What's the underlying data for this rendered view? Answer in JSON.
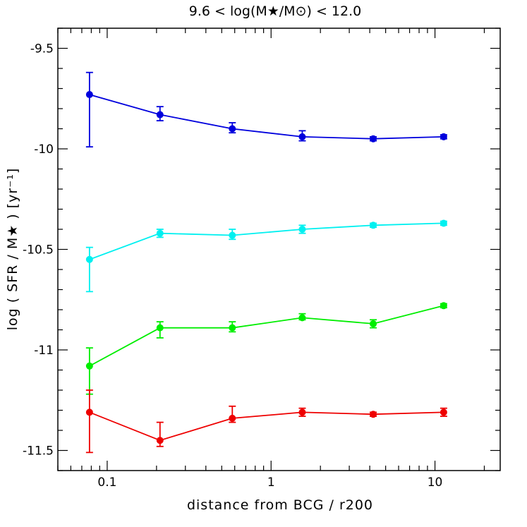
{
  "chart_data": {
    "type": "line",
    "title": "9.6 < log(M★/M⊙) < 12.0",
    "xlabel": "distance from BCG / r200",
    "ylabel": "log ( SFR / M★ ) [yr⁻¹]",
    "x_scale": "log",
    "xlim": [
      0.05,
      25
    ],
    "ylim": [
      -11.6,
      -9.4
    ],
    "x_ticks": [
      {
        "value": 0.1,
        "label": "0.1"
      },
      {
        "value": 1,
        "label": "1"
      },
      {
        "value": 10,
        "label": "10"
      }
    ],
    "y_ticks": [
      {
        "value": -9.5,
        "label": "-9.5"
      },
      {
        "value": -10,
        "label": "-10"
      },
      {
        "value": -10.5,
        "label": "-10.5"
      },
      {
        "value": -11,
        "label": "-11"
      },
      {
        "value": -11.5,
        "label": "-11.5"
      }
    ],
    "grid": false,
    "series": [
      {
        "color": "#0000dd",
        "x": [
          0.078,
          0.21,
          0.58,
          1.55,
          4.2,
          11.3
        ],
        "y": [
          -9.73,
          -9.83,
          -9.9,
          -9.94,
          -9.95,
          -9.94
        ],
        "err_low": [
          0.26,
          0.03,
          0.02,
          0.02,
          0.01,
          0.01
        ],
        "err_high": [
          0.11,
          0.04,
          0.03,
          0.03,
          0.01,
          0.01
        ]
      },
      {
        "color": "#00f0f0",
        "x": [
          0.078,
          0.21,
          0.58,
          1.55,
          4.2,
          11.3
        ],
        "y": [
          -10.55,
          -10.42,
          -10.43,
          -10.4,
          -10.38,
          -10.37
        ],
        "err_low": [
          0.16,
          0.02,
          0.02,
          0.02,
          0.01,
          0.01
        ],
        "err_high": [
          0.06,
          0.02,
          0.03,
          0.02,
          0.01,
          0.01
        ]
      },
      {
        "color": "#00ee00",
        "x": [
          0.078,
          0.21,
          0.58,
          1.55,
          4.2,
          11.3
        ],
        "y": [
          -11.08,
          -10.89,
          -10.89,
          -10.84,
          -10.87,
          -10.78
        ],
        "err_low": [
          0.14,
          0.05,
          0.02,
          0.01,
          0.02,
          0.01
        ],
        "err_high": [
          0.09,
          0.03,
          0.03,
          0.02,
          0.02,
          0.01
        ]
      },
      {
        "color": "#ee0000",
        "x": [
          0.078,
          0.21,
          0.58,
          1.55,
          4.2,
          11.3
        ],
        "y": [
          -11.31,
          -11.45,
          -11.34,
          -11.31,
          -11.32,
          -11.31
        ],
        "err_low": [
          0.2,
          0.03,
          0.02,
          0.02,
          0.01,
          0.02
        ],
        "err_high": [
          0.11,
          0.09,
          0.06,
          0.02,
          0.01,
          0.02
        ]
      }
    ]
  }
}
